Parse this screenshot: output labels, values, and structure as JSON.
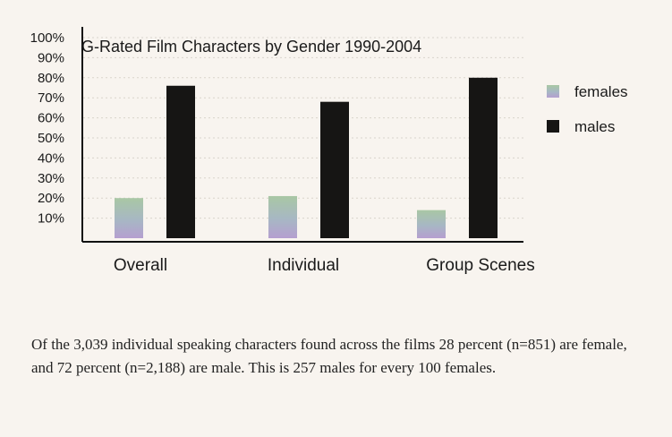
{
  "chart_data": {
    "type": "bar",
    "title": "G-Rated Film Characters by Gender 1990-2004",
    "categories": [
      "Overall",
      "Individual",
      "Group Scenes"
    ],
    "series": [
      {
        "name": "females",
        "values": [
          20,
          21,
          14
        ]
      },
      {
        "name": "males",
        "values": [
          76,
          68,
          80
        ]
      }
    ],
    "yticks": [
      "100%",
      "90%",
      "80%",
      "70%",
      "60%",
      "50%",
      "40%",
      "30%",
      "20%",
      "10%"
    ],
    "ylim": [
      0,
      100
    ],
    "grid": true,
    "legend": "right",
    "colors": {
      "females": "#b3b9c4",
      "males": "#161514"
    }
  },
  "caption": "Of the 3,039 individual speaking characters found across the films 28 percent (n=851) are female, and 72 percent (n=2,188) are male. This is 257 males for every 100 females."
}
